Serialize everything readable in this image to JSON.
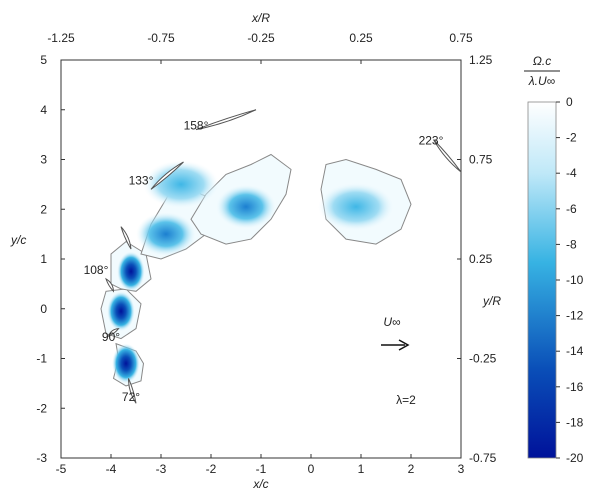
{
  "chart_data": {
    "type": "heatmap",
    "description_labels": {
      "bottom_axis_label": "x/c",
      "left_axis_label": "y/c",
      "top_axis_label": "x/R",
      "right_axis_label": "y/R"
    },
    "axes": {
      "bottom": {
        "label": "x/c",
        "range": [
          -5,
          3
        ],
        "ticks": [
          "-5",
          "-4",
          "-3",
          "-2",
          "-1",
          "0",
          "1",
          "2",
          "3"
        ]
      },
      "left": {
        "label": "y/c",
        "range": [
          -3,
          5
        ],
        "ticks": [
          "-3",
          "-2",
          "-1",
          "0",
          "1",
          "2",
          "3",
          "4",
          "5"
        ]
      },
      "top": {
        "label": "x/R",
        "range": [
          -1.25,
          0.75
        ],
        "ticks": [
          "-1.25",
          "-0.75",
          "-0.25",
          "0.25",
          "0.75"
        ]
      },
      "right": {
        "label": "y/R",
        "range": [
          -0.75,
          1.25
        ],
        "ticks": [
          "-0.75",
          "-0.25",
          "0.25",
          "0.75",
          "1.25"
        ]
      }
    },
    "colorbar": {
      "label_numerator": "Ω.c",
      "label_denominator": "λ.U∞",
      "range": [
        -20,
        0
      ],
      "ticks": [
        "0",
        "-2",
        "-4",
        "-6",
        "-8",
        "-10",
        "-12",
        "-14",
        "-16",
        "-18",
        "-20"
      ],
      "colors": [
        "#ffffff",
        "#bfe8f8",
        "#37b3e3",
        "#0a4fb8",
        "#00129a"
      ]
    },
    "blade_labels": [
      {
        "text": "72°",
        "x": -3.6,
        "y": -1.85
      },
      {
        "text": "90°",
        "x": -4.0,
        "y": -0.65
      },
      {
        "text": "108°",
        "x": -4.3,
        "y": 0.7
      },
      {
        "text": "133°",
        "x": -3.4,
        "y": 2.5
      },
      {
        "text": "158°",
        "x": -2.3,
        "y": 3.6
      },
      {
        "text": "223°",
        "x": 2.4,
        "y": 3.3
      }
    ],
    "vortices": [
      {
        "x": -3.7,
        "y": -1.1,
        "value": -14
      },
      {
        "x": -3.8,
        "y": -0.05,
        "value": -19
      },
      {
        "x": -3.6,
        "y": 0.75,
        "value": -15
      },
      {
        "x": -2.9,
        "y": 1.5,
        "value": -8
      },
      {
        "x": -2.6,
        "y": 2.5,
        "value": -5
      },
      {
        "x": -1.3,
        "y": 2.05,
        "value": -7
      },
      {
        "x": 0.9,
        "y": 2.05,
        "value": -5
      }
    ],
    "annotations": {
      "freestream_label": "U∞",
      "tsr_label": "λ=2"
    }
  }
}
